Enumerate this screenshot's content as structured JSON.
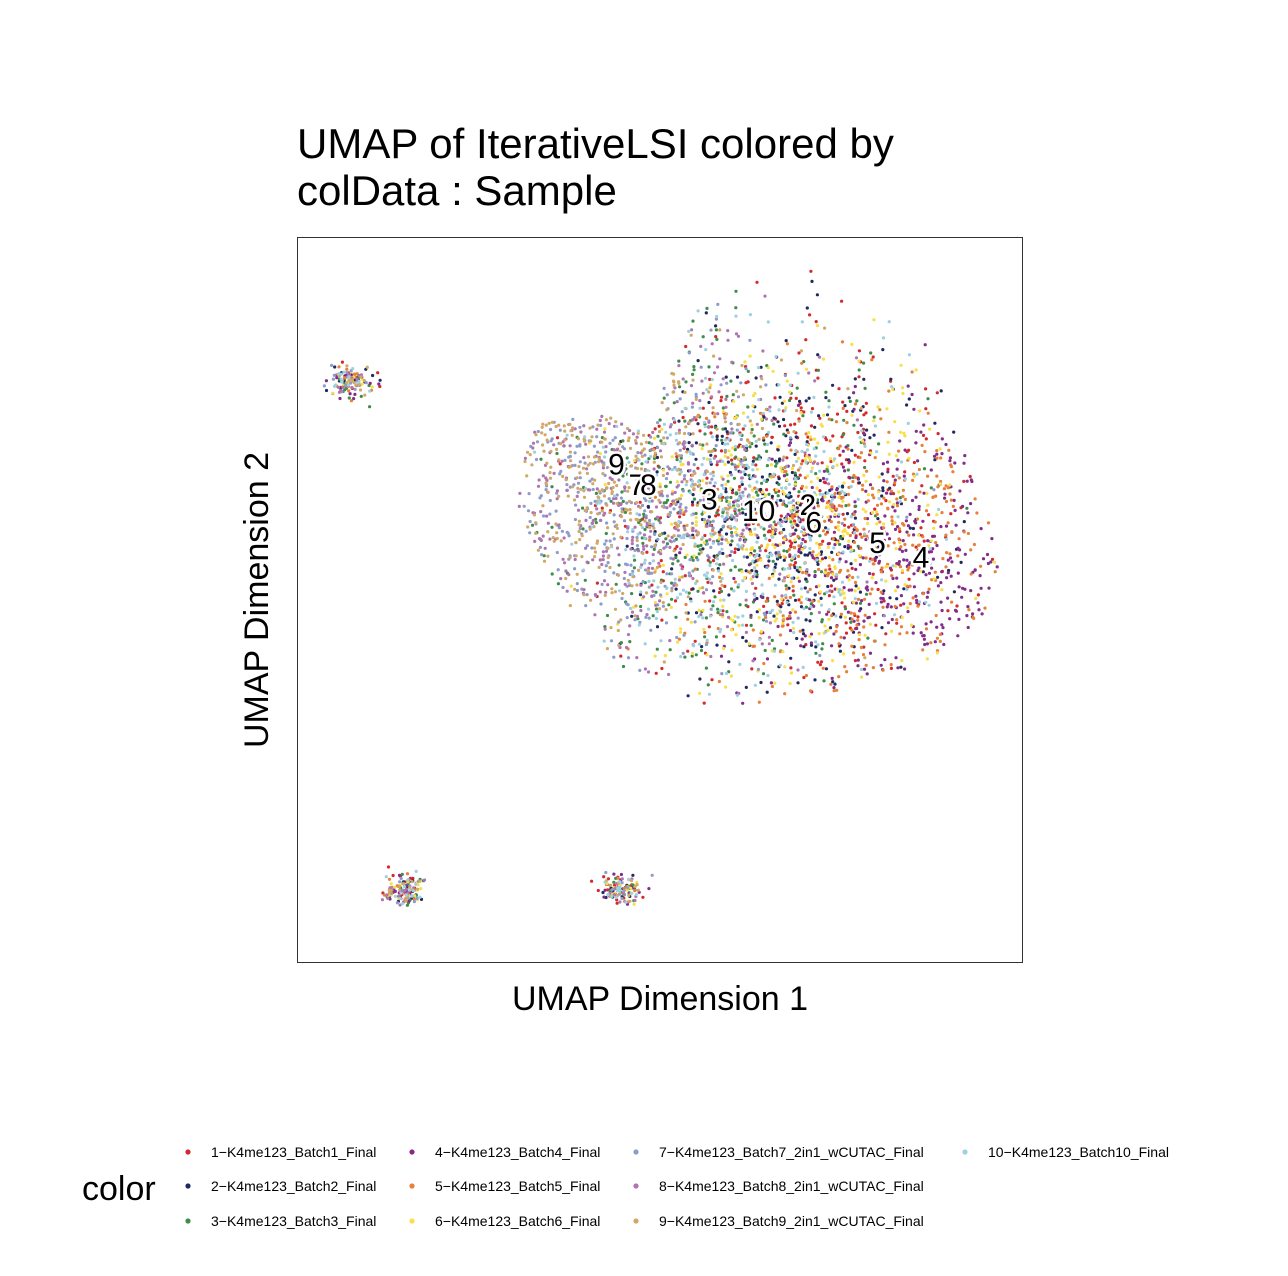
{
  "chart_data": {
    "type": "scatter",
    "title_line1": "UMAP of IterativeLSI  colored by",
    "title_line2": "colData :  Sample",
    "xlabel": "UMAP Dimension 1",
    "ylabel": "UMAP Dimension 2",
    "xlim": [
      -12,
      13
    ],
    "ylim": [
      -13,
      12
    ],
    "grid": false,
    "legend_position": "bottom",
    "legend_title": "color",
    "series": [
      {
        "name": "1−K4me123_Batch1_Final",
        "color": "#D52A2D",
        "cx": 4.7,
        "cy": 2.5
      },
      {
        "name": "2−K4me123_Batch2_Final",
        "color": "#1F2A5E",
        "cx": 4.8,
        "cy": 2.6
      },
      {
        "name": "3−K4me123_Batch3_Final",
        "color": "#3E8D4A",
        "cx": 2.3,
        "cy": 2.6
      },
      {
        "name": "4−K4me123_Batch4_Final",
        "color": "#832D8A",
        "cx": 8.9,
        "cy": 0.9
      },
      {
        "name": "5−K4me123_Batch5_Final",
        "color": "#E7803A",
        "cx": 7.4,
        "cy": 1.4
      },
      {
        "name": "6−K4me123_Batch6_Final",
        "color": "#F7E04A",
        "cx": 5.0,
        "cy": 2.1
      },
      {
        "name": "7−K4me123_Batch7_2in1_wCUTAC_Final",
        "color": "#8E9CCB",
        "cx": -0.7,
        "cy": 3.1
      },
      {
        "name": "8−K4me123_Batch8_2in1_wCUTAC_Final",
        "color": "#B174B3",
        "cx": -0.4,
        "cy": 3.1
      },
      {
        "name": "9−K4me123_Batch9_2in1_wCUTAC_Final",
        "color": "#D2A866",
        "cx": -1.5,
        "cy": 4.2
      },
      {
        "name": "10−K4me123_Batch10_Final",
        "color": "#9DD0E0",
        "cx": 3.6,
        "cy": 2.2
      }
    ],
    "cluster_labels": [
      {
        "text": "9",
        "x": -1.0,
        "y": 4.1
      },
      {
        "text": "7",
        "x": -0.3,
        "y": 3.4
      },
      {
        "text": "8",
        "x": 0.1,
        "y": 3.4
      },
      {
        "text": "3",
        "x": 2.2,
        "y": 2.9
      },
      {
        "text": "10",
        "x": 3.9,
        "y": 2.5
      },
      {
        "text": "1",
        "x": 5.6,
        "y": 2.7
      },
      {
        "text": "2",
        "x": 5.6,
        "y": 2.7
      },
      {
        "text": "6",
        "x": 5.8,
        "y": 2.1
      },
      {
        "text": "5",
        "x": 8.0,
        "y": 1.4
      },
      {
        "text": "4",
        "x": 9.5,
        "y": 0.9
      }
    ],
    "islands": [
      {
        "cx": -10.2,
        "cy": 7.0
      },
      {
        "cx": -8.3,
        "cy": -10.5
      },
      {
        "cx": -0.8,
        "cy": -10.5
      }
    ]
  }
}
